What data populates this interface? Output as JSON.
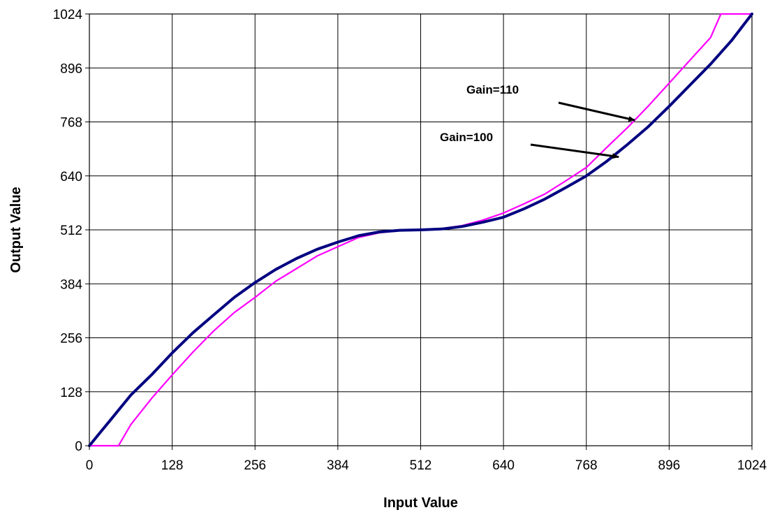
{
  "chart_data": {
    "type": "line",
    "title": "",
    "xlabel": "Input Value",
    "ylabel": "Output Value",
    "xlim": [
      0,
      1024
    ],
    "ylim": [
      0,
      1024
    ],
    "xticks": [
      "0",
      "128",
      "256",
      "384",
      "512",
      "640",
      "768",
      "896",
      "1024"
    ],
    "yticks": [
      "0",
      "128",
      "256",
      "384",
      "512",
      "640",
      "768",
      "896",
      "1024"
    ],
    "grid": true,
    "legend": "none",
    "series": [
      {
        "color": "#ff00ff",
        "x": [
          0,
          45,
          64,
          96,
          128,
          160,
          192,
          224,
          256,
          288,
          320,
          352,
          384,
          416,
          448,
          480,
          512,
          544,
          576,
          608,
          640,
          672,
          704,
          736,
          768,
          800,
          832,
          864,
          896,
          928,
          960,
          976,
          1000,
          1024
        ],
        "y": [
          0,
          0,
          50,
          112,
          168,
          222,
          272,
          316,
          352,
          390,
          420,
          450,
          472,
          494,
          505,
          510,
          512,
          515,
          522,
          535,
          552,
          574,
          597,
          628,
          660,
          708,
          755,
          806,
          860,
          914,
          968,
          1024,
          1024,
          1024
        ]
      },
      {
        "color": "#000080",
        "x": [
          0,
          16,
          32,
          48,
          64,
          96,
          128,
          160,
          192,
          224,
          256,
          288,
          320,
          352,
          384,
          416,
          448,
          480,
          512,
          544,
          576,
          608,
          640,
          672,
          704,
          736,
          768,
          800,
          832,
          864,
          896,
          928,
          960,
          992,
          1024
        ],
        "y": [
          0,
          30,
          60,
          90,
          120,
          168,
          220,
          268,
          310,
          352,
          387,
          418,
          444,
          466,
          483,
          498,
          507,
          511,
          512,
          514,
          520,
          530,
          542,
          562,
          585,
          612,
          640,
          675,
          715,
          757,
          805,
          855,
          905,
          960,
          1024
        ]
      }
    ],
    "annotations": [
      {
        "text": "Gain=110",
        "target_x": 843,
        "target_y": 772
      },
      {
        "text": "Gain=100",
        "target_x": 818,
        "target_y": 685
      }
    ]
  }
}
